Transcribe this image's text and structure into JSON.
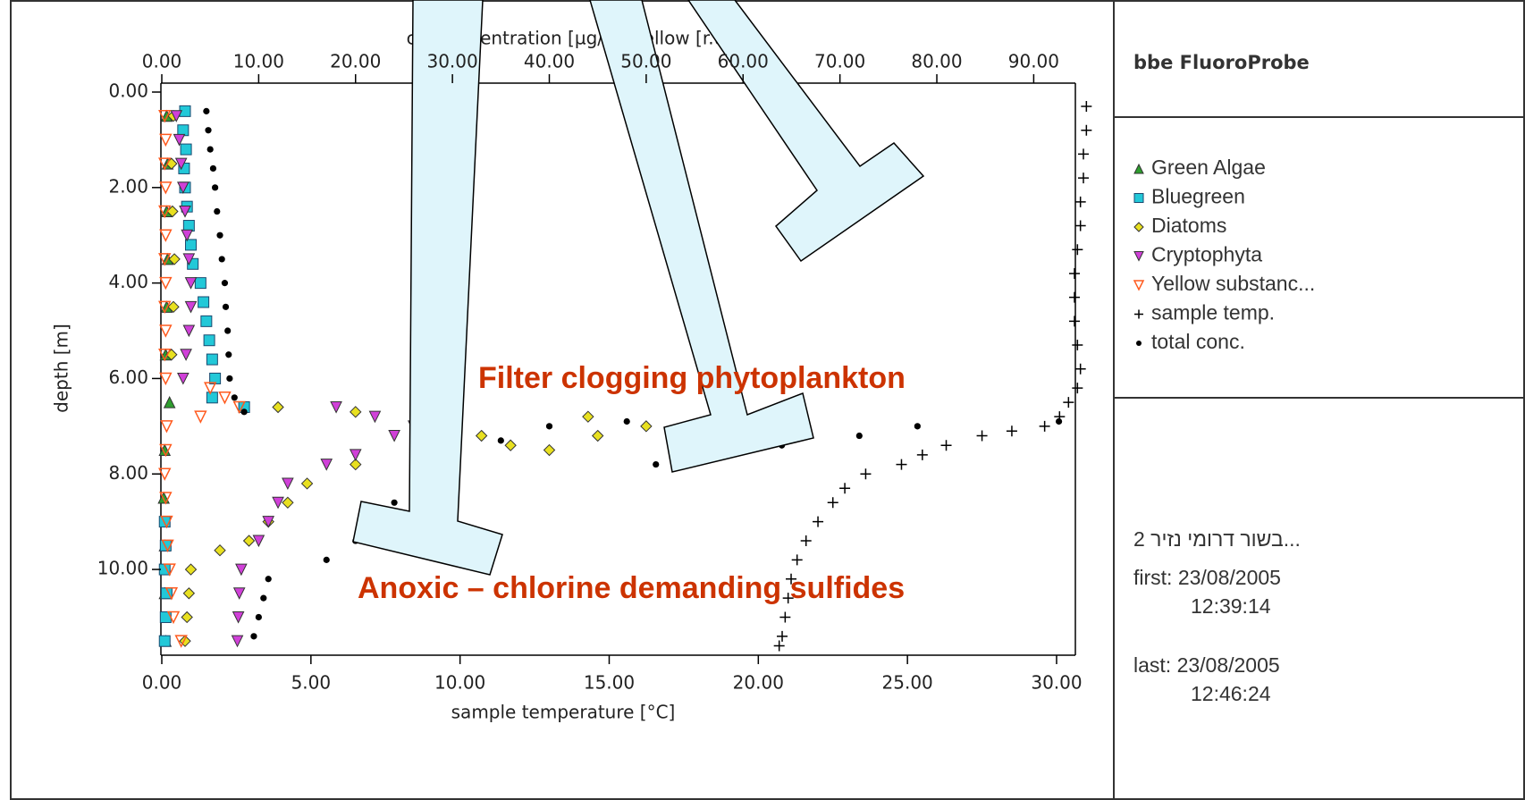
{
  "chart_data": {
    "type": "scatter",
    "xlabel": "chl concentration [µg/l] / yellow [r.u.]",
    "x2label": "sample temperature [°C]",
    "ylabel": "depth [m]",
    "xlim": [
      0,
      94.3
    ],
    "xticks": [
      {
        "value": 0,
        "label": "0.00"
      },
      {
        "value": 10,
        "label": "10.00"
      },
      {
        "value": 20,
        "label": "20.00"
      },
      {
        "value": 30,
        "label": "30.00"
      },
      {
        "value": 40,
        "label": "40.00"
      },
      {
        "value": 50,
        "label": "50.00"
      },
      {
        "value": 60,
        "label": "60.00"
      },
      {
        "value": 70,
        "label": "70.00"
      },
      {
        "value": 80,
        "label": "80.00"
      },
      {
        "value": 90,
        "label": "90.00"
      }
    ],
    "x2lim": [
      0,
      30.63
    ],
    "x2ticks": [
      {
        "value": 0,
        "label": "0.00"
      },
      {
        "value": 5,
        "label": "5.00"
      },
      {
        "value": 10,
        "label": "10.00"
      },
      {
        "value": 15,
        "label": "15.00"
      },
      {
        "value": 20,
        "label": "20.00"
      },
      {
        "value": 25,
        "label": "25.00"
      },
      {
        "value": 30,
        "label": "30.00"
      }
    ],
    "ylim": [
      0,
      11.74
    ],
    "y_inverted": true,
    "yticks": [
      {
        "value": 0,
        "label": "0.00"
      },
      {
        "value": 2,
        "label": "2.00"
      },
      {
        "value": 4,
        "label": "4.00"
      },
      {
        "value": 6,
        "label": "6.00"
      },
      {
        "value": 8,
        "label": "8.00"
      },
      {
        "value": 10,
        "label": "10.00"
      }
    ],
    "series": [
      {
        "name": "Green Algae",
        "color": "#2e9e2e",
        "marker": "triangle-up",
        "x": [
          0.5,
          0.6,
          0.5,
          0.6,
          0.5,
          0.4,
          0.8,
          0.3,
          0.2,
          0.3,
          0.3,
          0.4
        ],
        "y": [
          0.5,
          1.5,
          2.5,
          3.5,
          4.5,
          5.5,
          6.5,
          7.5,
          8.5,
          9.5,
          10.5,
          11.5
        ]
      },
      {
        "name": "Bluegreen",
        "color": "#22c8d8",
        "marker": "square",
        "x": [
          2.4,
          2.2,
          2.5,
          2.3,
          2.4,
          2.6,
          2.8,
          3.0,
          3.2,
          4.0,
          4.3,
          4.6,
          4.9,
          5.2,
          5.5,
          5.2,
          8.5,
          0.3,
          0.4,
          0.3,
          0.5,
          0.4,
          0.3
        ],
        "y": [
          0.4,
          0.8,
          1.2,
          1.6,
          2.0,
          2.4,
          2.8,
          3.2,
          3.6,
          4.0,
          4.4,
          4.8,
          5.2,
          5.6,
          6.0,
          6.4,
          6.6,
          9.0,
          9.5,
          10.0,
          10.5,
          11.0,
          11.5
        ]
      },
      {
        "name": "Diatoms",
        "color": "#e8e020",
        "marker": "diamond",
        "x": [
          1.2,
          1.0,
          1.1,
          1.3,
          1.2,
          1.0,
          12,
          20,
          28,
          33,
          36,
          40,
          45,
          50,
          44,
          20,
          15,
          13,
          11,
          9,
          6,
          3,
          2.8,
          2.6,
          2.4
        ],
        "y": [
          0.5,
          1.5,
          2.5,
          3.5,
          4.5,
          5.5,
          6.6,
          6.7,
          7.0,
          7.2,
          7.4,
          7.5,
          7.2,
          7.0,
          6.8,
          7.8,
          8.2,
          8.6,
          9.0,
          9.4,
          9.6,
          10.0,
          10.5,
          11.0,
          11.5
        ]
      },
      {
        "name": "Cryptophyta",
        "color": "#d040d8",
        "marker": "triangle-down",
        "x": [
          1.5,
          1.8,
          2.0,
          2.2,
          2.4,
          2.6,
          2.8,
          3.0,
          3.0,
          2.8,
          2.5,
          2.2,
          18,
          22,
          26,
          24,
          20,
          17,
          13,
          12,
          11,
          10,
          8.2,
          8.0,
          7.9,
          7.8
        ],
        "y": [
          0.5,
          1.0,
          1.5,
          2.0,
          2.5,
          3.0,
          3.5,
          4.0,
          4.5,
          5.0,
          5.5,
          6.0,
          6.6,
          6.8,
          7.0,
          7.2,
          7.6,
          7.8,
          8.2,
          8.6,
          9.0,
          9.4,
          10.0,
          10.5,
          11.0,
          11.5
        ]
      },
      {
        "name": "Yellow substanc...",
        "color": "#ff5a1e",
        "marker": "triangle-down-open",
        "x": [
          0.3,
          0.4,
          0.3,
          0.4,
          0.3,
          0.4,
          0.3,
          0.4,
          0.3,
          0.4,
          0.3,
          0.4,
          5,
          6.5,
          8,
          4,
          0.5,
          0.4,
          0.3,
          0.4,
          0.5,
          0.6,
          0.8,
          1.0,
          1.2,
          2.0
        ],
        "y": [
          0.5,
          1.0,
          1.5,
          2,
          2.5,
          3,
          3.5,
          4,
          4.5,
          5,
          5.5,
          6,
          6.2,
          6.4,
          6.6,
          6.8,
          7,
          7.5,
          8,
          8.5,
          9,
          9.5,
          10,
          10.5,
          11,
          11.5
        ]
      },
      {
        "name": "sample temp.",
        "color": "#000000",
        "marker": "plus",
        "axis": "x2",
        "x": [
          31.0,
          31.0,
          30.9,
          30.9,
          30.8,
          30.8,
          30.7,
          30.6,
          30.6,
          30.6,
          30.7,
          30.8,
          30.7,
          30.4,
          30.1,
          29.6,
          28.5,
          27.5,
          26.3,
          25.5,
          24.8,
          23.6,
          22.9,
          22.5,
          22.0,
          21.6,
          21.3,
          21.1,
          21.0,
          20.9,
          20.8,
          20.7
        ],
        "y": [
          0.3,
          0.8,
          1.3,
          1.8,
          2.3,
          2.8,
          3.3,
          3.8,
          4.3,
          4.8,
          5.3,
          5.8,
          6.2,
          6.5,
          6.8,
          7.0,
          7.1,
          7.2,
          7.4,
          7.6,
          7.8,
          8.0,
          8.3,
          8.6,
          9.0,
          9.4,
          9.8,
          10.2,
          10.6,
          11.0,
          11.4,
          11.6
        ]
      },
      {
        "name": "total conc.",
        "color": "#000000",
        "marker": "dot",
        "x": [
          4.6,
          4.8,
          5.0,
          5.3,
          5.5,
          5.7,
          6.0,
          6.2,
          6.5,
          6.6,
          6.8,
          6.9,
          7.0,
          7.5,
          8.5,
          92.6,
          78,
          72,
          64,
          57,
          51,
          48,
          40,
          35,
          26,
          24,
          22,
          20,
          17,
          11,
          10.5,
          10,
          9.5
        ],
        "y": [
          0.4,
          0.8,
          1.2,
          1.6,
          2.0,
          2.5,
          3.0,
          3.5,
          4.0,
          4.5,
          5.0,
          5.5,
          6.0,
          6.4,
          6.7,
          6.9,
          7.0,
          7.2,
          7.4,
          7.6,
          7.8,
          6.9,
          7.0,
          7.3,
          8.2,
          8.6,
          9.0,
          9.4,
          9.8,
          10.2,
          10.6,
          11.0,
          11.4
        ]
      }
    ],
    "annotations": [
      "Filter clogging phytoplankton",
      "Anoxic – chlorine demanding sulfides"
    ],
    "info": {
      "instrument": "bbe FluoroProbe",
      "site": "בשור דרומי נזיר 2...",
      "first": "first: 23/08/2005",
      "first_time": "12:39:14",
      "last": "last: 23/08/2005",
      "last_time": "12:46:24"
    }
  }
}
